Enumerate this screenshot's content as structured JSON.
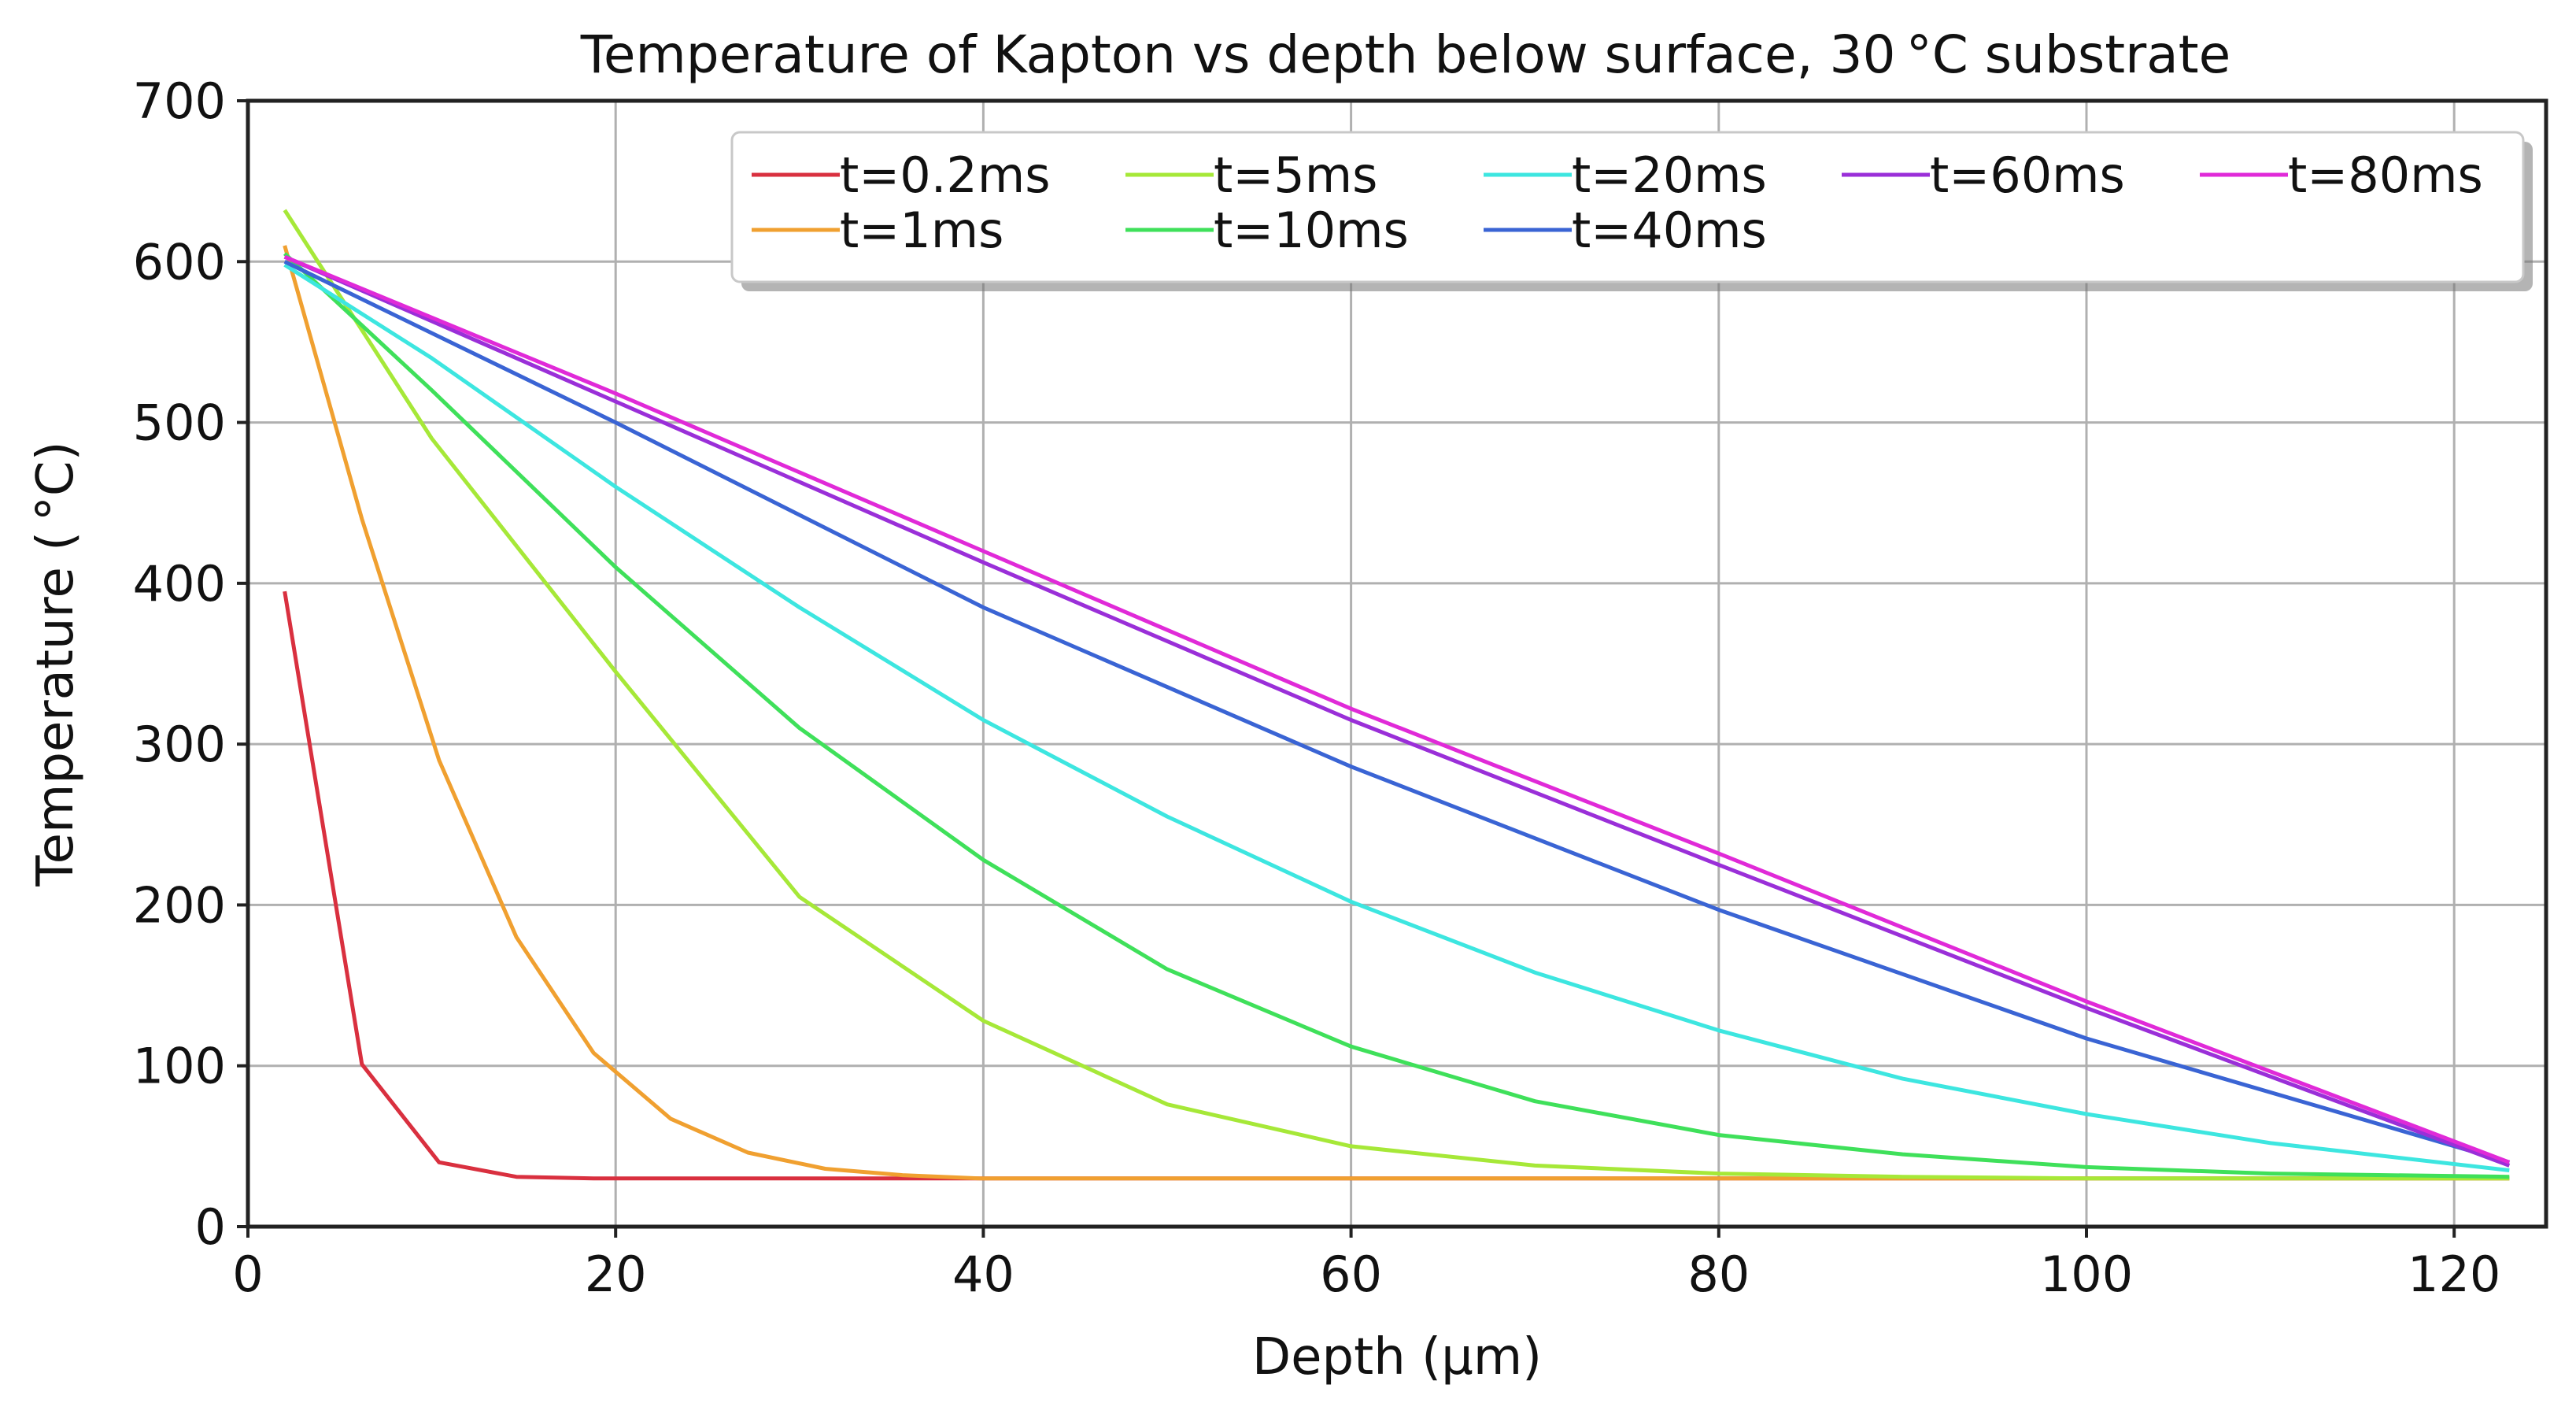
{
  "chart_data": {
    "type": "line",
    "title": "Temperature of Kapton vs depth below surface, 30 °C substrate",
    "xlabel": "Depth (μm)",
    "ylabel": "Temperature ( °C)",
    "xlim": [
      0,
      125
    ],
    "ylim": [
      0,
      700
    ],
    "xticks": [
      0,
      20,
      40,
      60,
      80,
      100,
      120
    ],
    "yticks": [
      0,
      100,
      200,
      300,
      400,
      500,
      600,
      700
    ],
    "grid": true,
    "legend_position": "top-right",
    "series": [
      {
        "name": "t=0.2ms",
        "color": "#d9303f",
        "x": [
          2,
          6.2,
          10.4,
          14.6,
          18.8,
          23,
          30,
          40,
          60,
          80,
          100,
          123
        ],
        "y": [
          395,
          101,
          40,
          31,
          30,
          30,
          30,
          30,
          30,
          30,
          30,
          30
        ]
      },
      {
        "name": "t=1ms",
        "color": "#f0a030",
        "x": [
          2,
          6.2,
          10.4,
          14.6,
          18.8,
          23,
          27.2,
          31.4,
          35.6,
          39.8,
          50,
          60,
          80,
          100,
          123
        ],
        "y": [
          610,
          440,
          290,
          180,
          108,
          67,
          46,
          36,
          32,
          30,
          30,
          30,
          30,
          30,
          30
        ]
      },
      {
        "name": "t=5ms",
        "color": "#a6e838",
        "x": [
          2,
          10,
          20,
          30,
          40,
          50,
          60,
          70,
          80,
          90,
          100,
          110,
          123
        ],
        "y": [
          632,
          490,
          345,
          205,
          128,
          76,
          50,
          38,
          33,
          31,
          30,
          30,
          30
        ]
      },
      {
        "name": "t=10ms",
        "color": "#3fe05a",
        "x": [
          2,
          10,
          20,
          30,
          40,
          50,
          60,
          70,
          80,
          90,
          100,
          110,
          123
        ],
        "y": [
          605,
          520,
          410,
          310,
          228,
          160,
          112,
          78,
          57,
          45,
          37,
          33,
          31
        ]
      },
      {
        "name": "t=20ms",
        "color": "#3de6e0",
        "x": [
          2,
          10,
          20,
          30,
          40,
          50,
          60,
          70,
          80,
          90,
          100,
          110,
          123
        ],
        "y": [
          598,
          540,
          460,
          385,
          315,
          255,
          202,
          158,
          122,
          92,
          70,
          52,
          35
        ]
      },
      {
        "name": "t=40ms",
        "color": "#3a64d4",
        "x": [
          2,
          20,
          40,
          60,
          80,
          100,
          123
        ],
        "y": [
          600,
          500,
          385,
          286,
          197,
          117,
          40
        ]
      },
      {
        "name": "t=60ms",
        "color": "#9a2fd8",
        "x": [
          2,
          20,
          40,
          60,
          80,
          100,
          123
        ],
        "y": [
          603,
          513,
          413,
          315,
          225,
          136,
          38
        ]
      },
      {
        "name": "t=80ms",
        "color": "#e02ad8",
        "x": [
          2,
          20,
          40,
          60,
          80,
          100,
          123
        ],
        "y": [
          603,
          518,
          420,
          322,
          232,
          140,
          40
        ]
      }
    ]
  }
}
